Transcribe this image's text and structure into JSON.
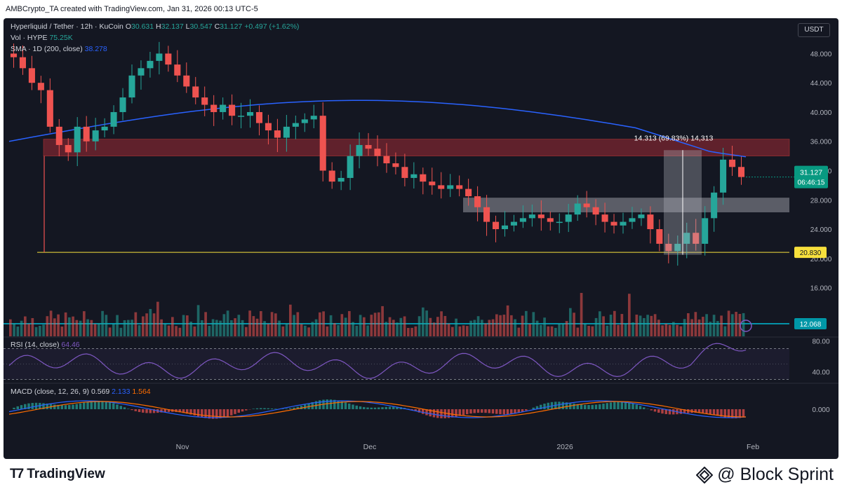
{
  "header": {
    "attribution": "AMBCrypto_TA created with TradingView.com, Jan 31, 2026 00:13 UTC-5"
  },
  "legend": {
    "symbol": "Hyperliquid / Tether · 12h · KuCoin",
    "o_label": "O",
    "o": "30.631",
    "h_label": "H",
    "h": "32.137",
    "l_label": "L",
    "l": "30.547",
    "c_label": "C",
    "c": "31.127",
    "change": "+0.497 (+1.62%)",
    "vol_label": "Vol · HYPE",
    "vol": "75.25K",
    "sma_label": "SMA · 1D (200, close)",
    "sma": "38.278",
    "rsi_label": "RSI (14, close)",
    "rsi": "64.46",
    "macd_label": "MACD (close, 12, 26, 9)",
    "macd_hist": "0.569",
    "macd": "2.133",
    "macd_signal": "1.564"
  },
  "currency_button": "USDT",
  "price_tag": {
    "value": "31.127",
    "countdown": "06:46:15"
  },
  "level_tags": {
    "support": "20.830",
    "volume_line": "12.068"
  },
  "measure_label": "14.313 (69.83%) 14,313",
  "footer": {
    "brand": "TradingView",
    "watermark": "@ Block Sprint"
  },
  "colors": {
    "bull": "#26a69a",
    "bear": "#ef5350",
    "sma": "#2962ff",
    "rsi": "#7e57c2",
    "macd": "#2962ff",
    "signal": "#ff6d00",
    "zone": "#7a2530",
    "support_line": "#f7e03c",
    "volume_line": "#00bcd4"
  },
  "chart_data": [
    {
      "type": "candlestick",
      "title": "Hyperliquid / Tether · 12h · KuCoin",
      "ylim": [
        12,
        50
      ],
      "y_ticks": [
        "48.000",
        "44.000",
        "40.000",
        "36.000",
        "32.000",
        "28.000",
        "24.000",
        "20.000",
        "16.000"
      ],
      "x_ticks": [
        "Nov",
        "Dec",
        "2026",
        "Feb"
      ],
      "series": [
        {
          "name": "Hyperliquid / Tether",
          "values_close_approx": [
            47.5,
            46,
            44,
            43,
            38,
            35.5,
            34.5,
            38,
            36,
            37.5,
            38,
            40,
            42,
            45,
            46,
            47,
            48,
            46.5,
            45,
            43.5,
            42,
            41,
            40,
            41,
            39.5,
            39.5,
            40,
            38.5,
            37.5,
            36.5,
            38,
            38.5,
            39,
            39.5,
            32,
            30.5,
            31,
            34,
            35.5,
            35,
            34,
            33,
            32.5,
            31,
            31.5,
            30.5,
            30,
            29.5,
            30,
            29.5,
            28.5,
            27,
            25,
            24,
            24.5,
            25,
            25.5,
            26,
            25.5,
            25,
            25,
            26,
            27.5,
            27,
            26,
            25,
            24.5,
            25,
            25.5,
            26,
            24,
            22,
            21,
            22,
            23.5,
            22,
            25.5,
            29,
            33.5,
            32.5,
            31.127
          ]
        },
        {
          "name": "SMA · 1D (200, close)",
          "value": 38.278
        }
      ],
      "annotations": {
        "resistance_zone": [
          34,
          36.3
        ],
        "mid_zone": [
          26.3,
          28.3
        ],
        "support_line": 20.83,
        "volume_line": 12.068,
        "measure": {
          "from": 20.5,
          "to": 34.8,
          "text": "14.313 (69.83%) 14,313"
        }
      }
    },
    {
      "type": "line",
      "title": "RSI (14, close)",
      "ylim": [
        25,
        85
      ],
      "y_ticks": [
        "80.00",
        "40.00"
      ],
      "series": [
        {
          "name": "RSI",
          "last": 64.46
        }
      ]
    },
    {
      "type": "bar",
      "title": "MACD (close, 12, 26, 9)",
      "y_ticks": [
        "0.000"
      ],
      "series": [
        {
          "name": "Histogram",
          "last": 0.569
        },
        {
          "name": "MACD",
          "last": 2.133
        },
        {
          "name": "Signal",
          "last": 1.564
        }
      ]
    }
  ]
}
